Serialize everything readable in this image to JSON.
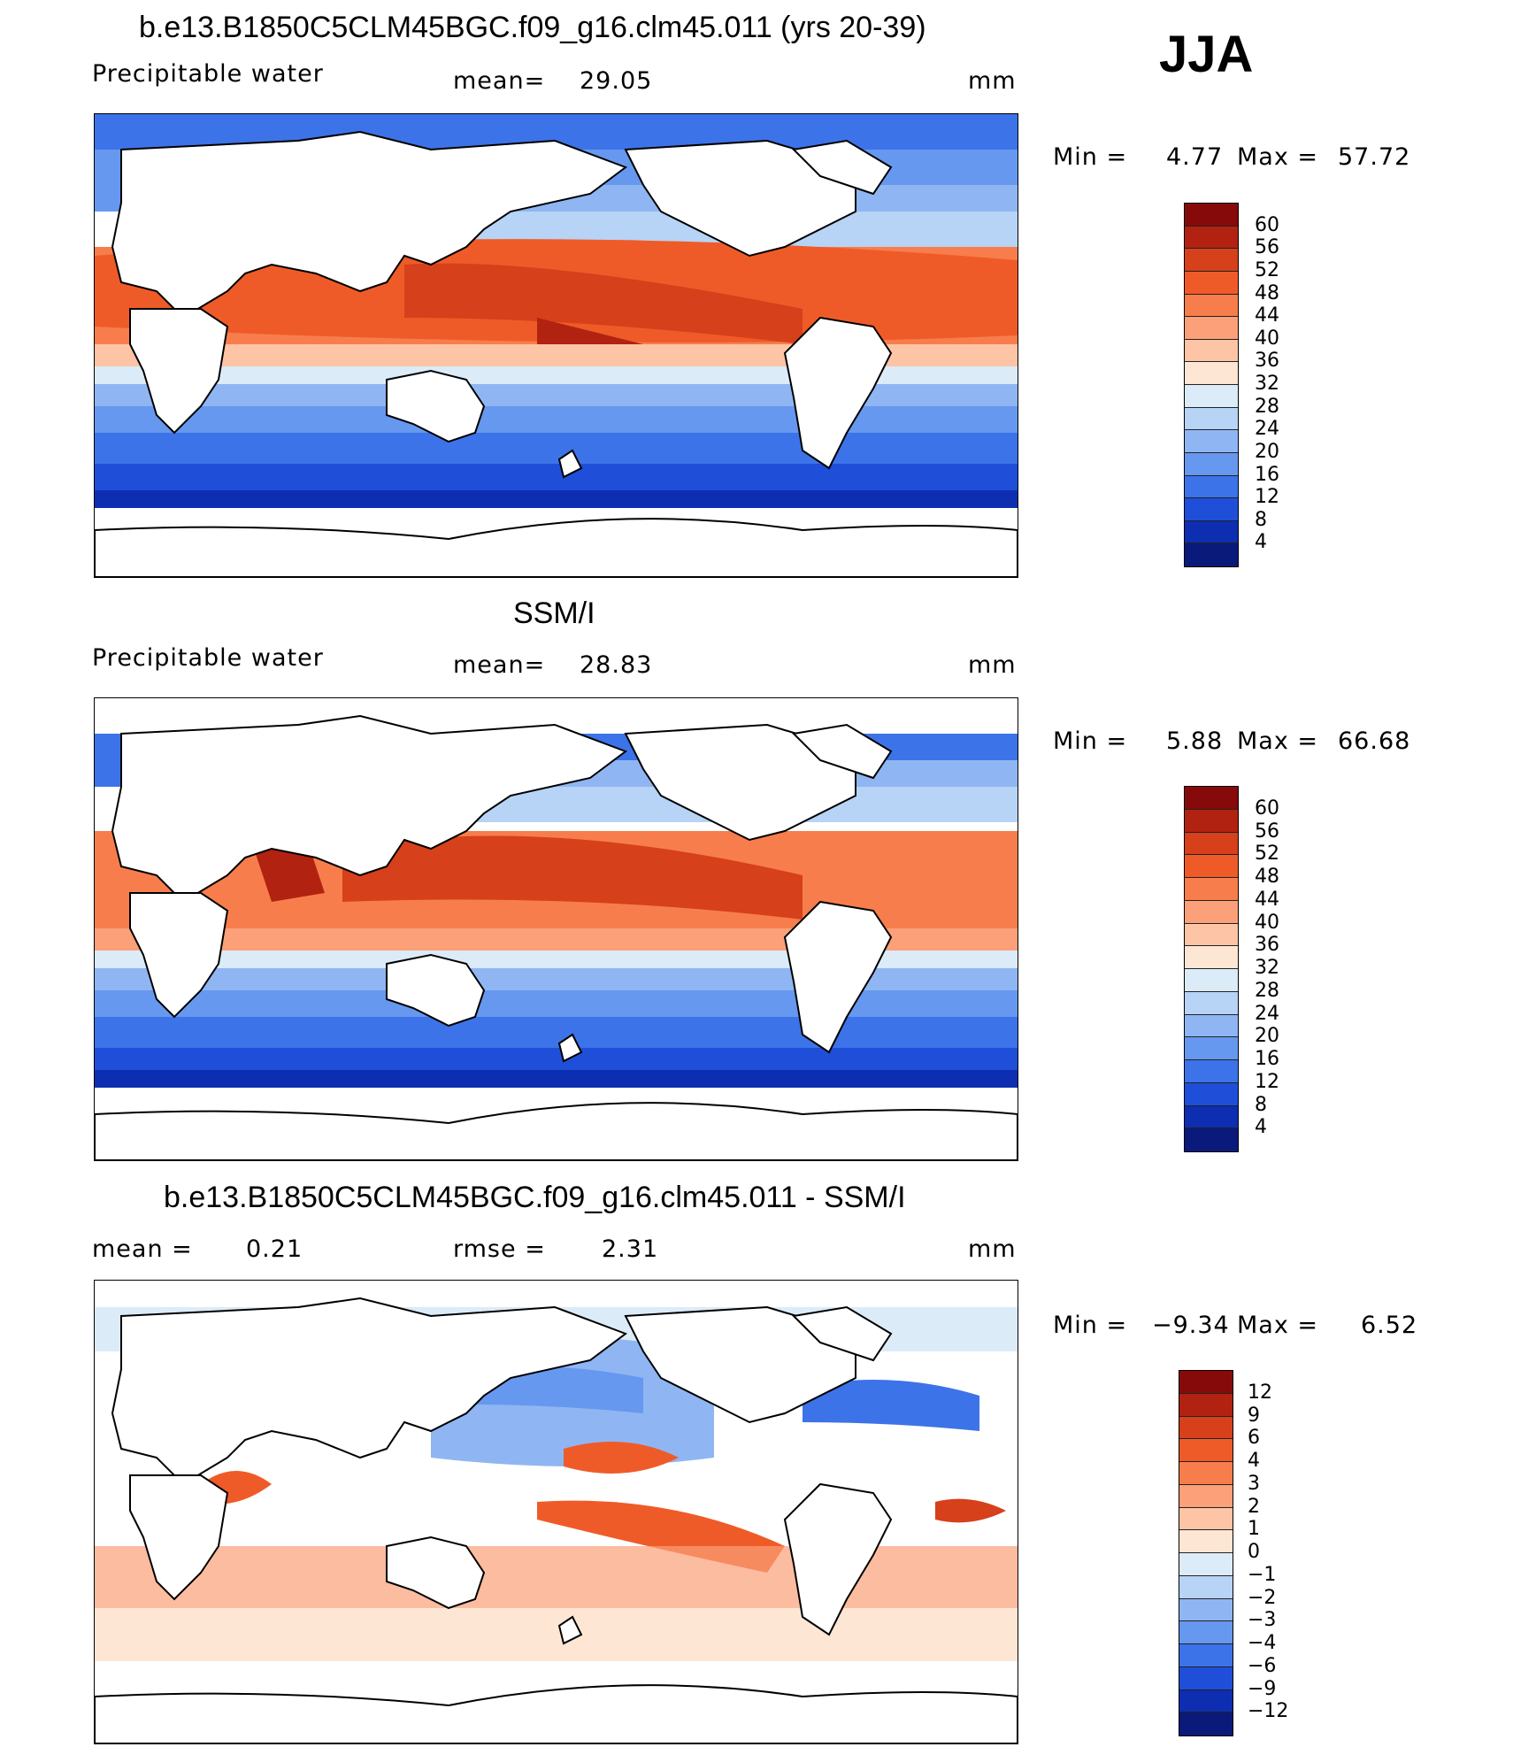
{
  "season": "JJA",
  "units": "mm",
  "panels": [
    {
      "title": "b.e13.B1850C5CLM45BGC.f09_g16.clm45.011 (yrs 20-39)",
      "left_label": "Precipitable water",
      "stat_label": "mean=",
      "stat_value": "29.05",
      "units": "mm",
      "min_label": "Min =",
      "min_value": "4.77",
      "max_label": "Max =",
      "max_value": "57.72"
    },
    {
      "title": "SSM/I",
      "left_label": "Precipitable water",
      "stat_label": "mean=",
      "stat_value": "28.83",
      "units": "mm",
      "min_label": "Min =",
      "min_value": "5.88",
      "max_label": "Max =",
      "max_value": "66.68"
    },
    {
      "title": "b.e13.B1850C5CLM45BGC.f09_g16.clm45.011 - SSM/I",
      "left_label": "mean =",
      "left_value": "0.21",
      "stat_label": "rmse =",
      "stat_value": "2.31",
      "units": "mm",
      "min_label": "Min =",
      "min_value": "−9.34",
      "max_label": "Max =",
      "max_value": "6.52"
    }
  ],
  "chart_data": [
    {
      "type": "heatmap",
      "title": "b.e13.B1850C5CLM45BGC.f09_g16.clm45.011 (yrs 20-39)",
      "variable": "Precipitable water",
      "units": "mm",
      "mean": 29.05,
      "min": 4.77,
      "max": 57.72,
      "colorbar_levels": [
        60,
        56,
        52,
        48,
        44,
        40,
        36,
        32,
        28,
        24,
        20,
        16,
        12,
        8,
        4
      ],
      "colorbar_colors": [
        "#870a0a",
        "#b22210",
        "#d6401b",
        "#ef5b28",
        "#f77e4c",
        "#fba078",
        "#fdc4a5",
        "#fde6d4",
        "#dcebf8",
        "#b7d3f5",
        "#8fb6f2",
        "#6698ef",
        "#3d73e8",
        "#1f4fd9",
        "#0d2eb0",
        "#0a1a7a"
      ]
    },
    {
      "type": "heatmap",
      "title": "SSM/I",
      "variable": "Precipitable water",
      "units": "mm",
      "mean": 28.83,
      "min": 5.88,
      "max": 66.68,
      "colorbar_levels": [
        60,
        56,
        52,
        48,
        44,
        40,
        36,
        32,
        28,
        24,
        20,
        16,
        12,
        8,
        4
      ],
      "colorbar_colors": [
        "#870a0a",
        "#b22210",
        "#d6401b",
        "#ef5b28",
        "#f77e4c",
        "#fba078",
        "#fdc4a5",
        "#fde6d4",
        "#dcebf8",
        "#b7d3f5",
        "#8fb6f2",
        "#6698ef",
        "#3d73e8",
        "#1f4fd9",
        "#0d2eb0",
        "#0a1a7a"
      ]
    },
    {
      "type": "heatmap",
      "title": "b.e13.B1850C5CLM45BGC.f09_g16.clm45.011 - SSM/I",
      "units": "mm",
      "mean": 0.21,
      "rmse": 2.31,
      "min": -9.34,
      "max": 6.52,
      "colorbar_levels": [
        "12",
        "9",
        "6",
        "4",
        "3",
        "2",
        "1",
        "0",
        "−1",
        "−2",
        "−3",
        "−4",
        "−6",
        "−9",
        "−12"
      ],
      "colorbar_colors": [
        "#870a0a",
        "#b22210",
        "#d6401b",
        "#ef5b28",
        "#f77e4c",
        "#fba078",
        "#fdc4a5",
        "#fde6d4",
        "#dcebf8",
        "#b7d3f5",
        "#8fb6f2",
        "#6698ef",
        "#3d73e8",
        "#1f4fd9",
        "#0d2eb0",
        "#0a1a7a"
      ]
    }
  ]
}
